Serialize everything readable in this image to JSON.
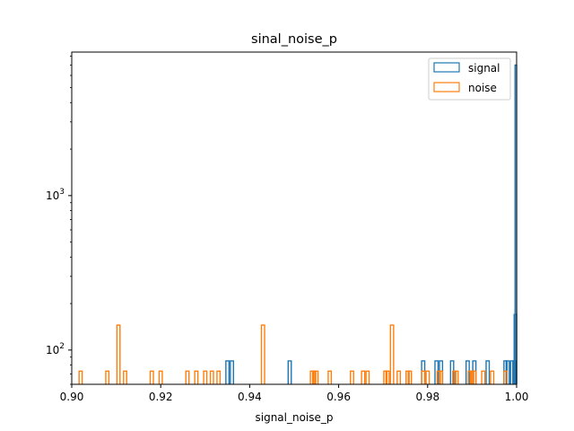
{
  "chart_data": {
    "type": "histogram",
    "title": "sinal_noise_p",
    "xlabel": "signal_noise_p",
    "ylabel": "",
    "xlim": [
      0.9,
      1.0
    ],
    "ylim": [
      60,
      8500
    ],
    "yscale": "log",
    "grid": false,
    "legend_position": "top-right",
    "x_ticks": [
      "0.90",
      "0.92",
      "0.94",
      "0.96",
      "0.98",
      "1.00"
    ],
    "y_ticks": [
      {
        "value": 100,
        "label": "10^2"
      },
      {
        "value": 1000,
        "label": "10^3"
      }
    ],
    "series": [
      {
        "name": "signal",
        "color": "#1f77b4",
        "bars": [
          {
            "x": 0.935,
            "y": 85
          },
          {
            "x": 0.936,
            "y": 85
          },
          {
            "x": 0.949,
            "y": 85
          },
          {
            "x": 0.979,
            "y": 85
          },
          {
            "x": 0.982,
            "y": 85
          },
          {
            "x": 0.983,
            "y": 85
          },
          {
            "x": 0.9855,
            "y": 85
          },
          {
            "x": 0.989,
            "y": 85
          },
          {
            "x": 0.9905,
            "y": 85
          },
          {
            "x": 0.9935,
            "y": 85
          },
          {
            "x": 0.9975,
            "y": 85
          },
          {
            "x": 0.998,
            "y": 85
          },
          {
            "x": 0.999,
            "y": 85
          },
          {
            "x": 0.9995,
            "y": 85
          },
          {
            "x": 0.9998,
            "y": 170
          },
          {
            "x": 1.0,
            "y": 7000
          }
        ]
      },
      {
        "name": "noise",
        "color": "#ff7f0e",
        "bars": [
          {
            "x": 0.902,
            "y": 73
          },
          {
            "x": 0.908,
            "y": 73
          },
          {
            "x": 0.9105,
            "y": 145
          },
          {
            "x": 0.912,
            "y": 73
          },
          {
            "x": 0.918,
            "y": 73
          },
          {
            "x": 0.92,
            "y": 73
          },
          {
            "x": 0.926,
            "y": 73
          },
          {
            "x": 0.928,
            "y": 73
          },
          {
            "x": 0.93,
            "y": 73
          },
          {
            "x": 0.9315,
            "y": 73
          },
          {
            "x": 0.933,
            "y": 73
          },
          {
            "x": 0.943,
            "y": 145
          },
          {
            "x": 0.954,
            "y": 73
          },
          {
            "x": 0.9545,
            "y": 73
          },
          {
            "x": 0.955,
            "y": 73
          },
          {
            "x": 0.958,
            "y": 73
          },
          {
            "x": 0.963,
            "y": 73
          },
          {
            "x": 0.9655,
            "y": 73
          },
          {
            "x": 0.9665,
            "y": 73
          },
          {
            "x": 0.9705,
            "y": 73
          },
          {
            "x": 0.971,
            "y": 73
          },
          {
            "x": 0.972,
            "y": 145
          },
          {
            "x": 0.9735,
            "y": 73
          },
          {
            "x": 0.9755,
            "y": 73
          },
          {
            "x": 0.976,
            "y": 73
          },
          {
            "x": 0.979,
            "y": 73
          },
          {
            "x": 0.98,
            "y": 73
          },
          {
            "x": 0.9825,
            "y": 73
          },
          {
            "x": 0.983,
            "y": 73
          },
          {
            "x": 0.986,
            "y": 73
          },
          {
            "x": 0.9865,
            "y": 73
          },
          {
            "x": 0.9895,
            "y": 73
          },
          {
            "x": 0.99,
            "y": 73
          },
          {
            "x": 0.9905,
            "y": 73
          },
          {
            "x": 0.9925,
            "y": 73
          },
          {
            "x": 0.9945,
            "y": 73
          },
          {
            "x": 0.9975,
            "y": 73
          }
        ]
      }
    ]
  }
}
